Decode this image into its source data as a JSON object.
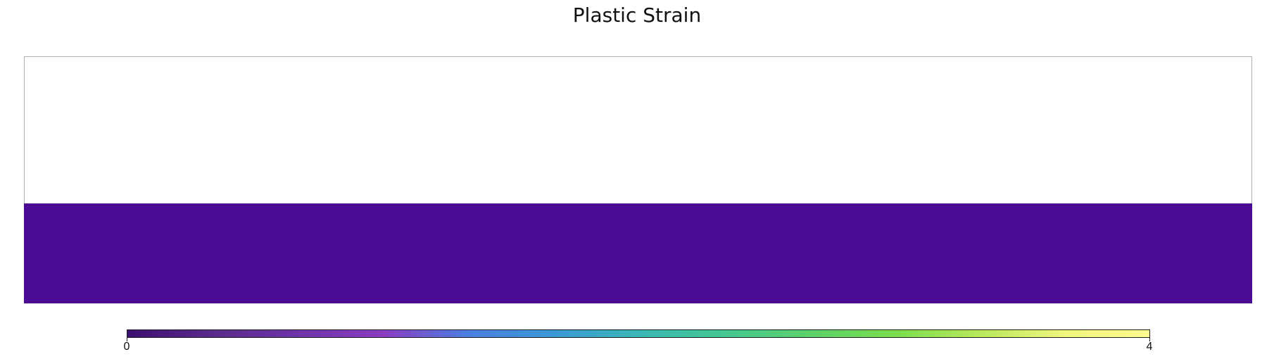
{
  "chart_data": {
    "type": "heatmap",
    "title": "Plastic Strain",
    "field": "plastic strain",
    "domain": {
      "filled_fraction_of_height": 0.405,
      "uniform_value": 0.0
    },
    "colorbar": {
      "min": 0,
      "max": 4,
      "tick_labels": [
        "0",
        "4"
      ],
      "colormap": "plasma",
      "colors": [
        "#3b0f70",
        "#5b2a8a",
        "#6d34a8",
        "#8b3cc1",
        "#4b7fe0",
        "#3a98d6",
        "#3bb7b6",
        "#44c792",
        "#5bd16b",
        "#79de4d",
        "#b8e85b",
        "#f0f67d",
        "#fdfb8f"
      ]
    },
    "grid": false,
    "legend": "bottom"
  }
}
